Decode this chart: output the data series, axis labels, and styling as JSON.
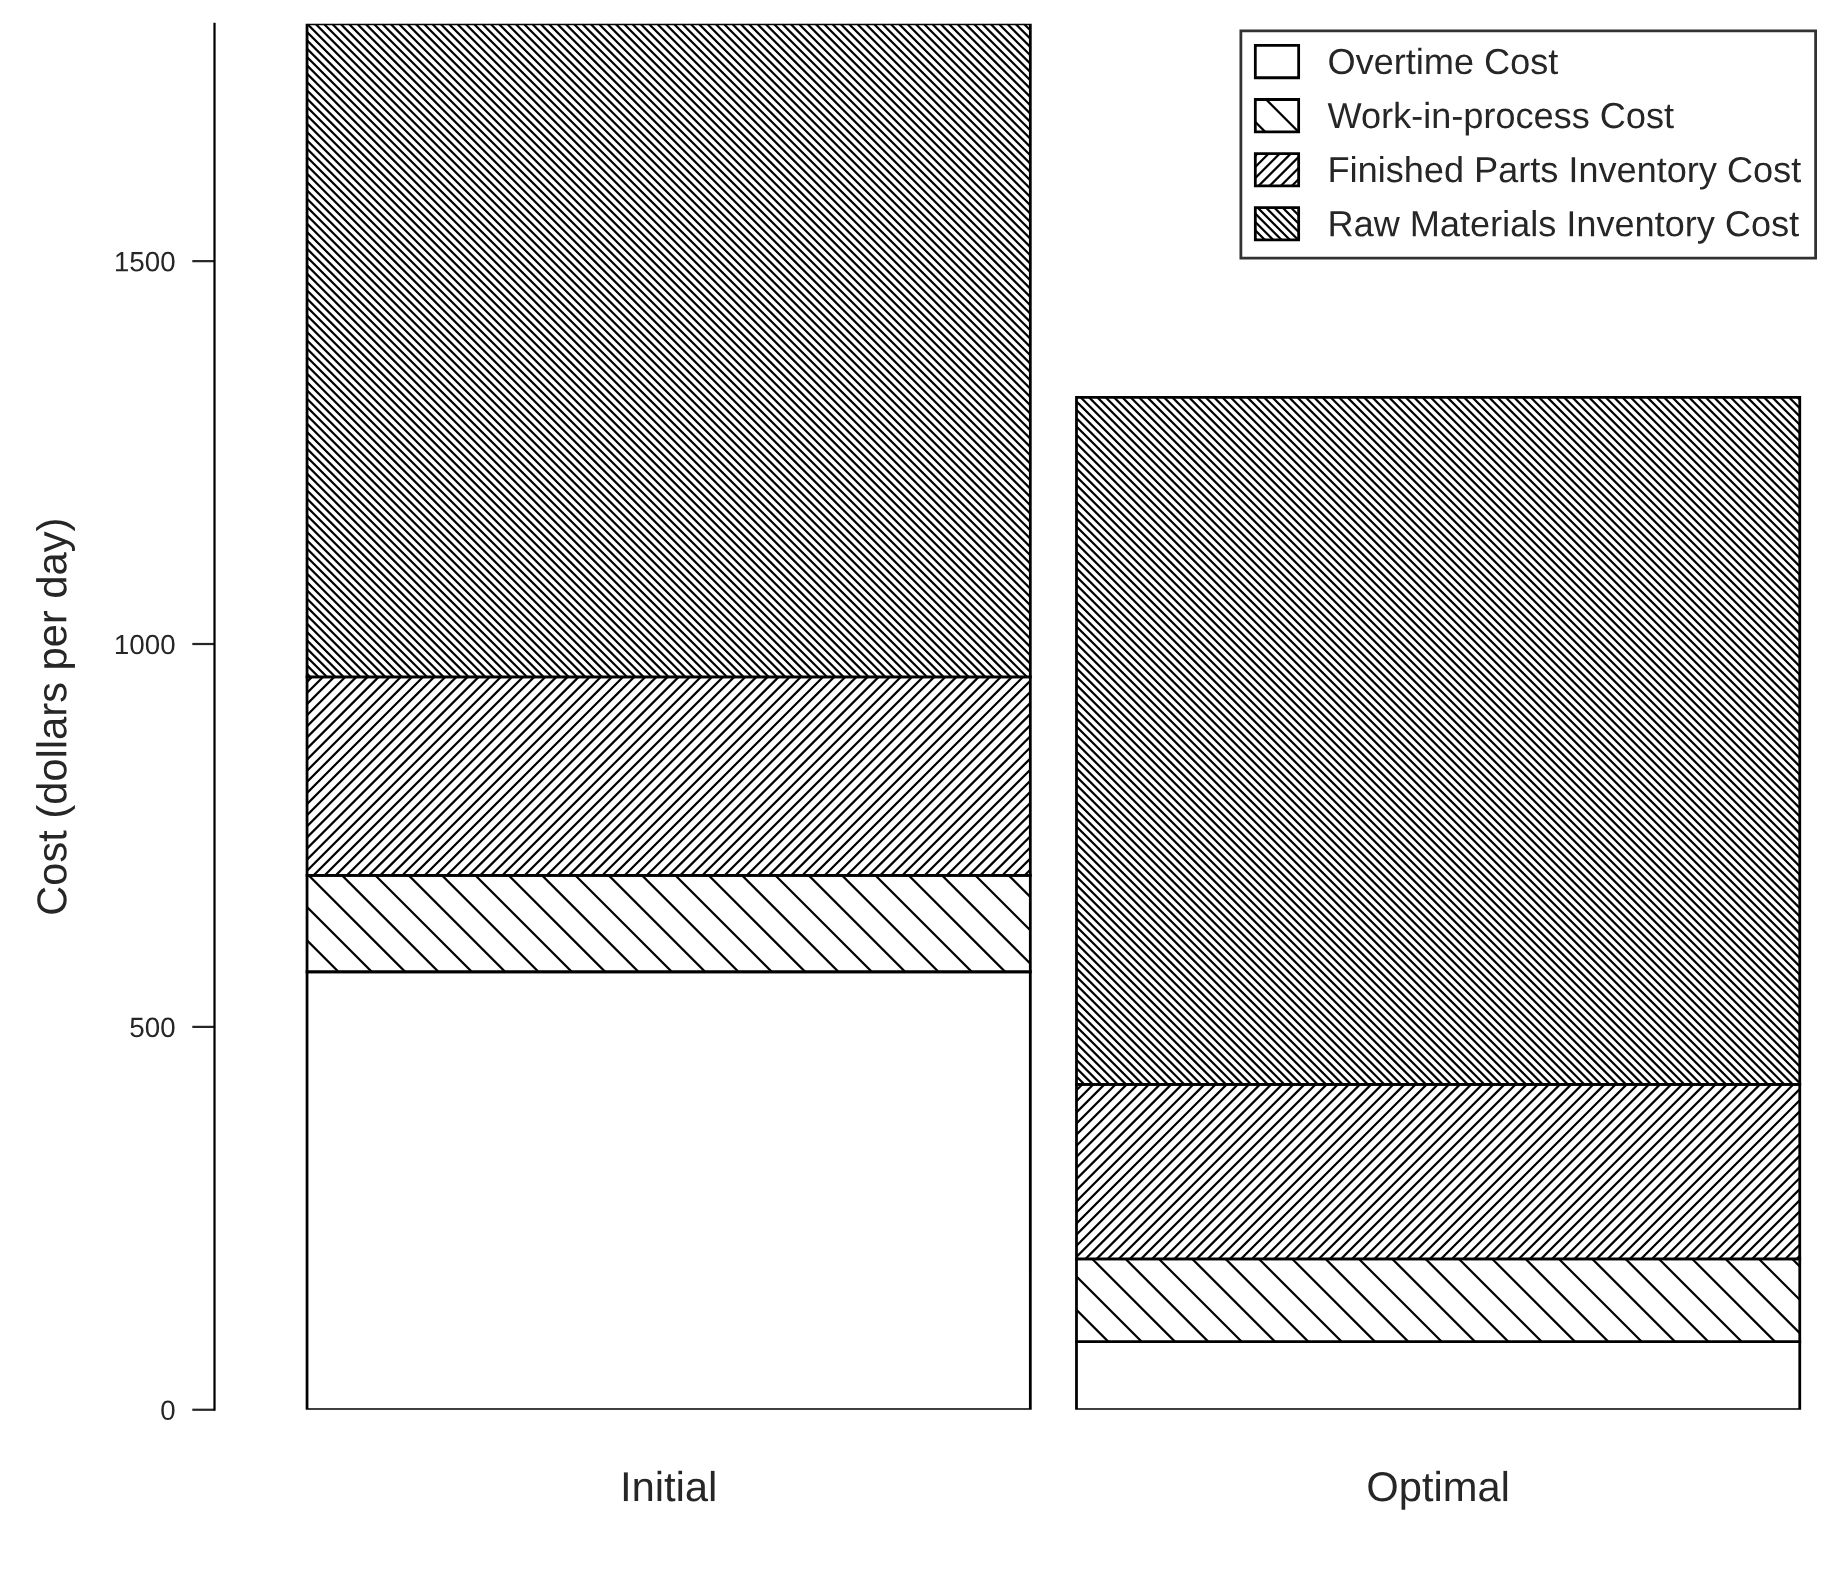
{
  "chart_data": {
    "type": "bar",
    "stacked": true,
    "ylabel": "Cost (dollars per day)",
    "categories": [
      "Initial",
      "Optimal"
    ],
    "series": [
      {
        "name": "Overtime Cost",
        "color": "#ffffff",
        "values": [
          572,
          89
        ]
      },
      {
        "name": "Work-in-process Cost",
        "color": "#000000",
        "values": [
          126,
          108
        ]
      },
      {
        "name": "Finished Parts Inventory Cost",
        "color": "#000000",
        "values": [
          259,
          228
        ]
      },
      {
        "name": "Raw Materials Inventory Cost",
        "color": "#000000",
        "values": [
          853,
          897
        ]
      }
    ],
    "ylim": [
      0,
      1810
    ],
    "yticks": [
      0,
      500,
      1000,
      1500
    ],
    "grid": false,
    "legend": "top right"
  }
}
